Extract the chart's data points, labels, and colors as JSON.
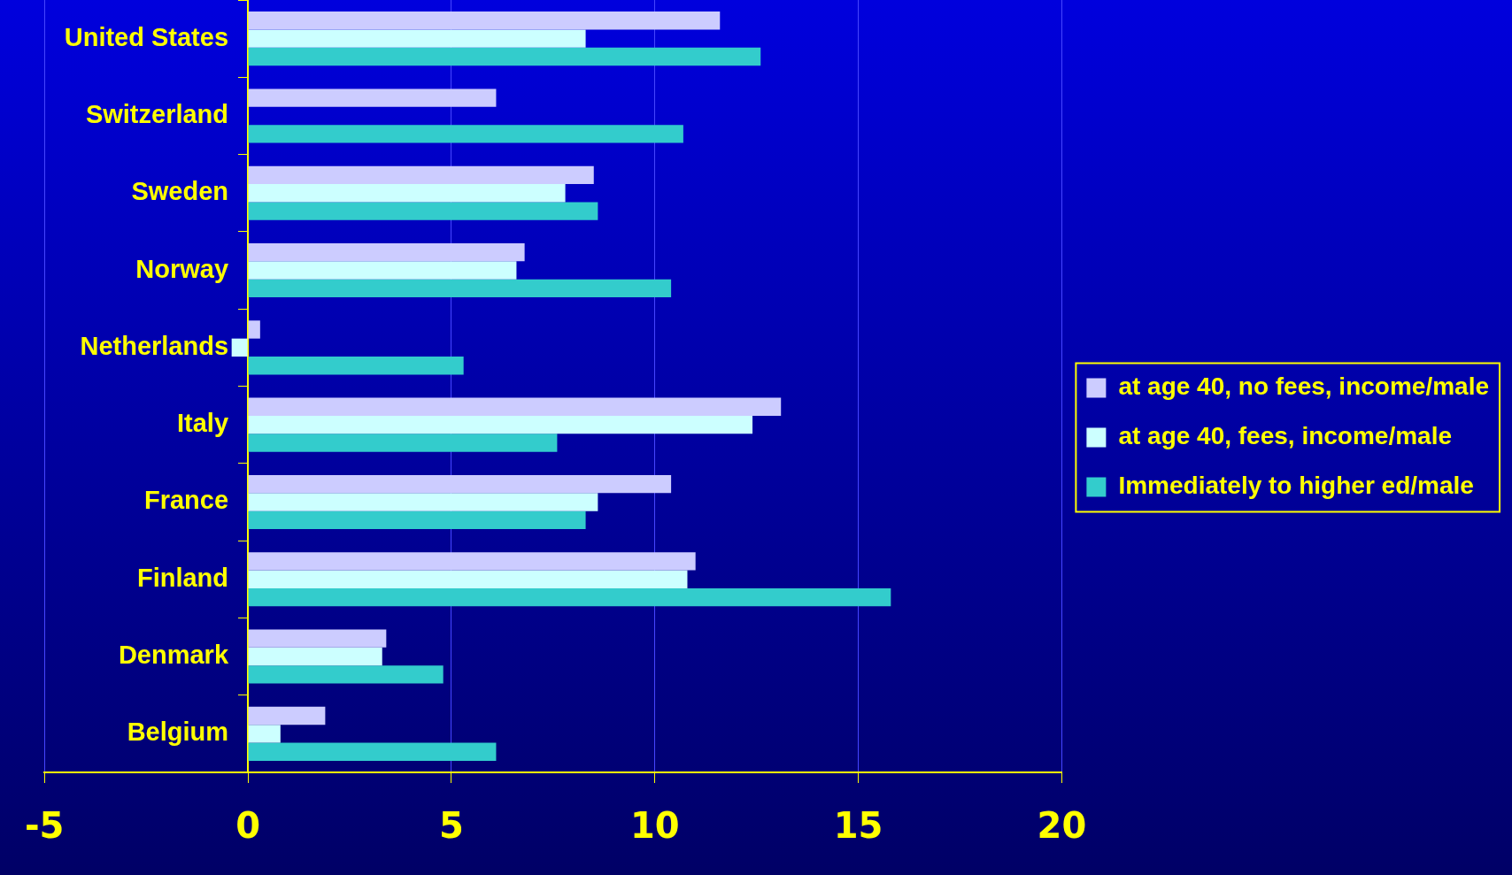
{
  "chart_data": {
    "type": "bar",
    "orientation": "horizontal",
    "categories": [
      "United States",
      "Switzerland",
      "Sweden",
      "Norway",
      "Netherlands",
      "Italy",
      "France",
      "Finland",
      "Denmark",
      "Belgium"
    ],
    "series": [
      {
        "name": "at age 40, no fees, income/male",
        "color": "#ccccff",
        "values": [
          11.6,
          6.1,
          8.5,
          6.8,
          0.3,
          13.1,
          10.4,
          11.0,
          3.4,
          1.9
        ]
      },
      {
        "name": "at age 40, fees, income/male",
        "color": "#ccffff",
        "values": [
          8.3,
          null,
          7.8,
          6.6,
          -0.4,
          12.4,
          8.6,
          10.8,
          3.3,
          0.8
        ]
      },
      {
        "name": "Immediately to higher ed/male",
        "color": "#33cccc",
        "values": [
          12.6,
          10.7,
          8.6,
          10.4,
          5.3,
          7.6,
          8.3,
          15.8,
          4.8,
          6.1
        ]
      }
    ],
    "xlim": [
      -5,
      20
    ],
    "xticks": [
      -5,
      0,
      5,
      10,
      15,
      20
    ],
    "grid": "x",
    "legend": "right"
  }
}
